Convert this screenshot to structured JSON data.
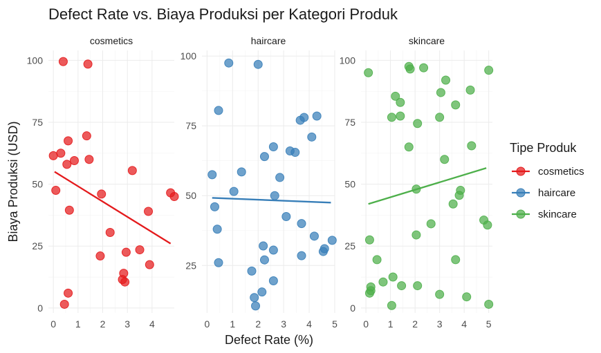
{
  "chart_data": {
    "type": "scatter",
    "title": "Defect Rate vs. Biaya Produksi per Kategori Produk",
    "xlabel": "Defect Rate (%)",
    "ylabel": "Biaya Produksi (USD)",
    "legend": {
      "title": "Tipe Produk",
      "position": "right"
    },
    "grid": true,
    "trendline": "linear",
    "panels": [
      {
        "name": "cosmetics",
        "color": "#e41a1c",
        "xlim": [
          -0.2,
          4.9
        ],
        "ylim": [
          -2,
          104
        ],
        "xticks": [
          0,
          1,
          2,
          3,
          4
        ],
        "yticks": [
          0,
          25,
          50,
          75,
          100
        ],
        "trend": [
          [
            0.05,
            55
          ],
          [
            4.75,
            26
          ]
        ],
        "points": [
          [
            0.4,
            99.5
          ],
          [
            1.4,
            98.5
          ],
          [
            0.0,
            61.5
          ],
          [
            0.3,
            62.5
          ],
          [
            0.6,
            67.5
          ],
          [
            0.85,
            59.5
          ],
          [
            0.55,
            58
          ],
          [
            1.35,
            69.5
          ],
          [
            1.45,
            60
          ],
          [
            0.1,
            47.5
          ],
          [
            0.65,
            39.5
          ],
          [
            1.95,
            46
          ],
          [
            2.3,
            30.5
          ],
          [
            3.2,
            55.5
          ],
          [
            3.85,
            39
          ],
          [
            4.75,
            46.5
          ],
          [
            4.9,
            45
          ],
          [
            1.9,
            21
          ],
          [
            2.95,
            22.5
          ],
          [
            3.5,
            23.5
          ],
          [
            3.9,
            17.5
          ],
          [
            2.85,
            14
          ],
          [
            2.8,
            11.5
          ],
          [
            2.9,
            10.5
          ],
          [
            0.6,
            6
          ],
          [
            0.45,
            1.5
          ]
        ]
      },
      {
        "name": "haircare",
        "color": "#377eb8",
        "xlim": [
          -0.2,
          5.0
        ],
        "ylim": [
          8,
          102
        ],
        "xticks": [
          0,
          1,
          2,
          3,
          4,
          5
        ],
        "yticks": [
          25,
          50,
          75,
          100
        ],
        "trend": [
          [
            0.2,
            49.2
          ],
          [
            4.85,
            47.5
          ]
        ],
        "points": [
          [
            0.85,
            97.5
          ],
          [
            2.0,
            97
          ],
          [
            0.45,
            80.5
          ],
          [
            4.3,
            78.5
          ],
          [
            3.8,
            78
          ],
          [
            3.65,
            77
          ],
          [
            4.1,
            71
          ],
          [
            2.6,
            67.5
          ],
          [
            3.25,
            66
          ],
          [
            3.45,
            65.5
          ],
          [
            2.25,
            64
          ],
          [
            1.35,
            58.5
          ],
          [
            0.2,
            57.5
          ],
          [
            2.85,
            56.5
          ],
          [
            1.05,
            51.5
          ],
          [
            2.65,
            50
          ],
          [
            0.3,
            46
          ],
          [
            3.1,
            42.5
          ],
          [
            3.7,
            40
          ],
          [
            0.4,
            38
          ],
          [
            4.2,
            35.5
          ],
          [
            4.9,
            34
          ],
          [
            2.2,
            32
          ],
          [
            2.6,
            30.5
          ],
          [
            4.55,
            30
          ],
          [
            4.6,
            31
          ],
          [
            3.7,
            28.5
          ],
          [
            2.25,
            27
          ],
          [
            0.45,
            26
          ],
          [
            1.75,
            23
          ],
          [
            2.6,
            19.5
          ],
          [
            2.15,
            15.5
          ],
          [
            1.85,
            13.5
          ],
          [
            1.9,
            10.5
          ]
        ]
      },
      {
        "name": "skincare",
        "color": "#4daf4a",
        "xlim": [
          -0.2,
          5.15
        ],
        "ylim": [
          -2,
          104
        ],
        "xticks": [
          0,
          1,
          2,
          3,
          4,
          5
        ],
        "yticks": [
          0,
          25,
          50,
          75,
          100
        ],
        "trend": [
          [
            0.1,
            42
          ],
          [
            4.9,
            56.5
          ]
        ],
        "points": [
          [
            0.1,
            95
          ],
          [
            1.75,
            97.5
          ],
          [
            1.8,
            96.5
          ],
          [
            2.35,
            97
          ],
          [
            5.0,
            96
          ],
          [
            3.25,
            92
          ],
          [
            4.25,
            88
          ],
          [
            1.2,
            85.5
          ],
          [
            1.4,
            83
          ],
          [
            3.05,
            87
          ],
          [
            3.65,
            82
          ],
          [
            1.05,
            77
          ],
          [
            1.4,
            77.5
          ],
          [
            2.1,
            74.5
          ],
          [
            3.0,
            77
          ],
          [
            1.75,
            65
          ],
          [
            4.3,
            65.5
          ],
          [
            3.2,
            60
          ],
          [
            2.05,
            48
          ],
          [
            3.85,
            47.5
          ],
          [
            3.8,
            45.5
          ],
          [
            3.55,
            42
          ],
          [
            2.05,
            29.5
          ],
          [
            2.65,
            34
          ],
          [
            4.8,
            35.5
          ],
          [
            4.95,
            33.5
          ],
          [
            0.15,
            27.5
          ],
          [
            0.45,
            19.5
          ],
          [
            3.65,
            19.5
          ],
          [
            1.1,
            12.5
          ],
          [
            0.7,
            10.5
          ],
          [
            1.45,
            9
          ],
          [
            2.1,
            9
          ],
          [
            0.2,
            8.5
          ],
          [
            0.2,
            7
          ],
          [
            0.15,
            6
          ],
          [
            3.0,
            5.5
          ],
          [
            4.1,
            4.5
          ],
          [
            1.05,
            1
          ],
          [
            5.0,
            1.5
          ]
        ]
      }
    ]
  }
}
